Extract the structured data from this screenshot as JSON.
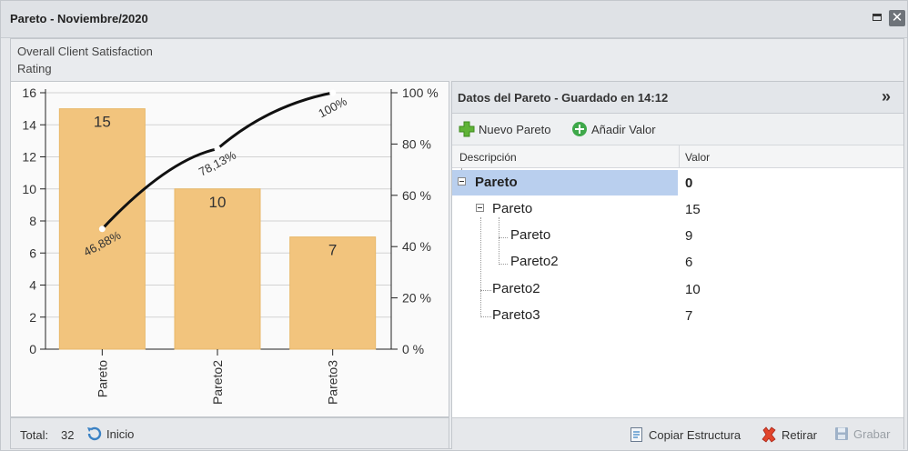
{
  "window": {
    "title": "Pareto - Noviembre/2020"
  },
  "chart_header": {
    "line1": "Overall Client Satisfaction",
    "line2": "Rating"
  },
  "chart_data": {
    "type": "bar",
    "categories": [
      "Pareto",
      "Pareto2",
      "Pareto3"
    ],
    "values": [
      15,
      10,
      7
    ],
    "value_labels": [
      "15",
      "10",
      "7"
    ],
    "ylim": [
      0,
      16
    ],
    "y_ticks": [
      "0",
      "2",
      "4",
      "6",
      "8",
      "10",
      "12",
      "14",
      "16"
    ],
    "y2_ticks": [
      "0 %",
      "20 %",
      "40 %",
      "60 %",
      "80 %",
      "100 %"
    ],
    "cumulative_percent": [
      46.88,
      78.13,
      100
    ],
    "cumulative_labels": [
      "46,88%",
      "78,13%",
      "100%"
    ],
    "bar_color": "#f2c47d",
    "line_color": "#111111"
  },
  "footer_left": {
    "total_label": "Total:",
    "total_value": "32",
    "inicio_label": "Inicio"
  },
  "right_panel": {
    "title": "Datos del Pareto - Guardado en 14:12",
    "collapse_icon": "»",
    "toolbar": {
      "new_label": "Nuevo Pareto",
      "add_label": "Añadir Valor"
    },
    "columns": {
      "desc": "Descripción",
      "value": "Valor"
    },
    "rows": [
      {
        "label": "Pareto",
        "value": "0"
      },
      {
        "label": "Pareto",
        "value": "15"
      },
      {
        "label": "Pareto",
        "value": "9"
      },
      {
        "label": "Pareto2",
        "value": "6"
      },
      {
        "label": "Pareto2",
        "value": "10"
      },
      {
        "label": "Pareto3",
        "value": "7"
      }
    ],
    "footer": {
      "copy_label": "Copiar Estructura",
      "remove_label": "Retirar",
      "save_label": "Grabar"
    }
  }
}
